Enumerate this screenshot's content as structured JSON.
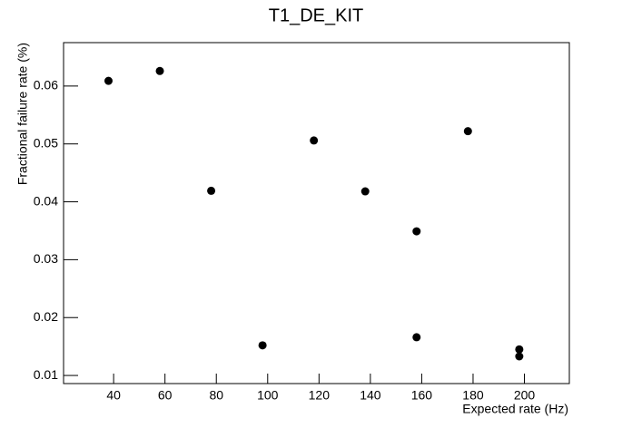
{
  "chart_data": {
    "type": "scatter",
    "title": "T1_DE_KIT",
    "x_label": "Expected rate (Hz)",
    "y_label": "Fractional failure rate (%)",
    "x": [
      38,
      58,
      78,
      98,
      118,
      138,
      158,
      158,
      178,
      198,
      198
    ],
    "values": [
      0.0609,
      0.0626,
      0.0419,
      0.0152,
      0.0506,
      0.0418,
      0.0349,
      0.0166,
      0.0522,
      0.0145,
      0.0133
    ],
    "color": "#000000",
    "xlim": [
      20.5,
      217.5
    ],
    "xticks": [
      40,
      60,
      80,
      100,
      120,
      140,
      160,
      180,
      200
    ],
    "ylim": [
      0.0086,
      0.0675
    ],
    "yticks": [
      0.01,
      0.02,
      0.03,
      0.04,
      0.05,
      0.06
    ],
    "grid": false
  }
}
